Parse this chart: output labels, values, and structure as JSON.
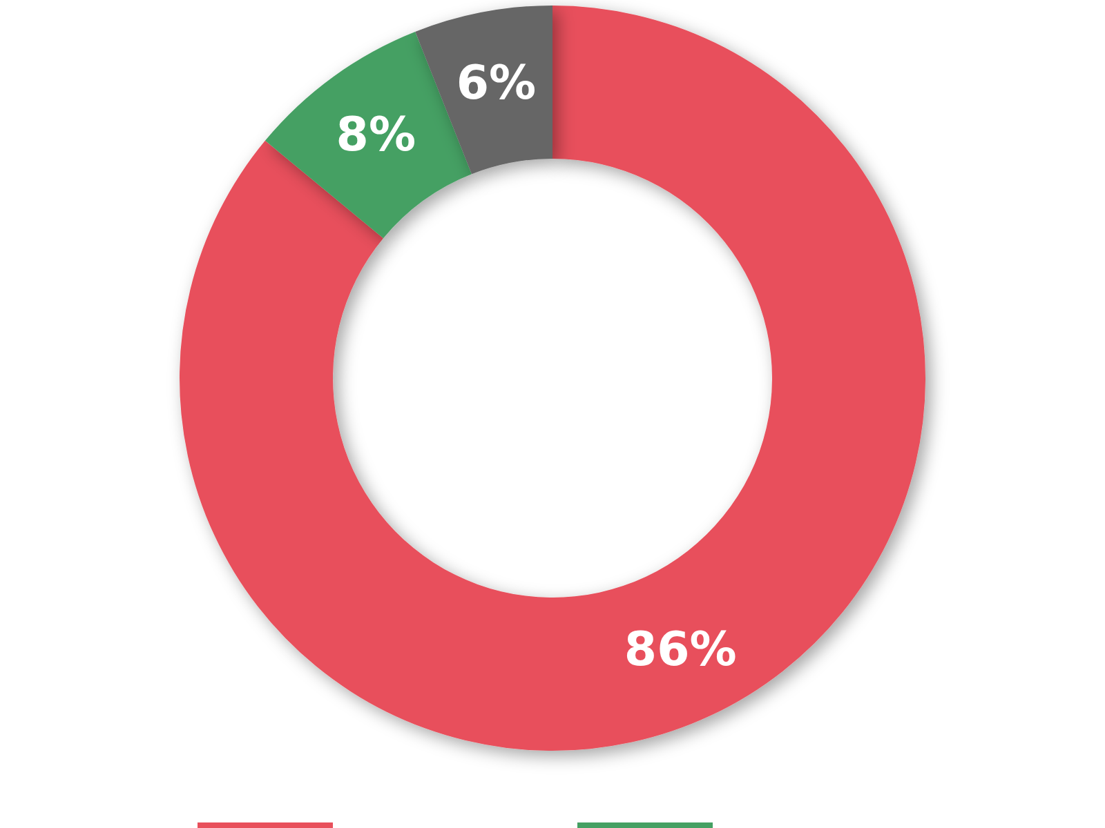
{
  "chart_data": {
    "type": "donut",
    "categories": [
      null,
      null,
      null
    ],
    "values": [
      86,
      8,
      6
    ],
    "colors": [
      "#e8505b",
      "#45a063",
      "#666666"
    ],
    "value_labels": [
      "86%",
      "8%",
      "6%"
    ]
  }
}
